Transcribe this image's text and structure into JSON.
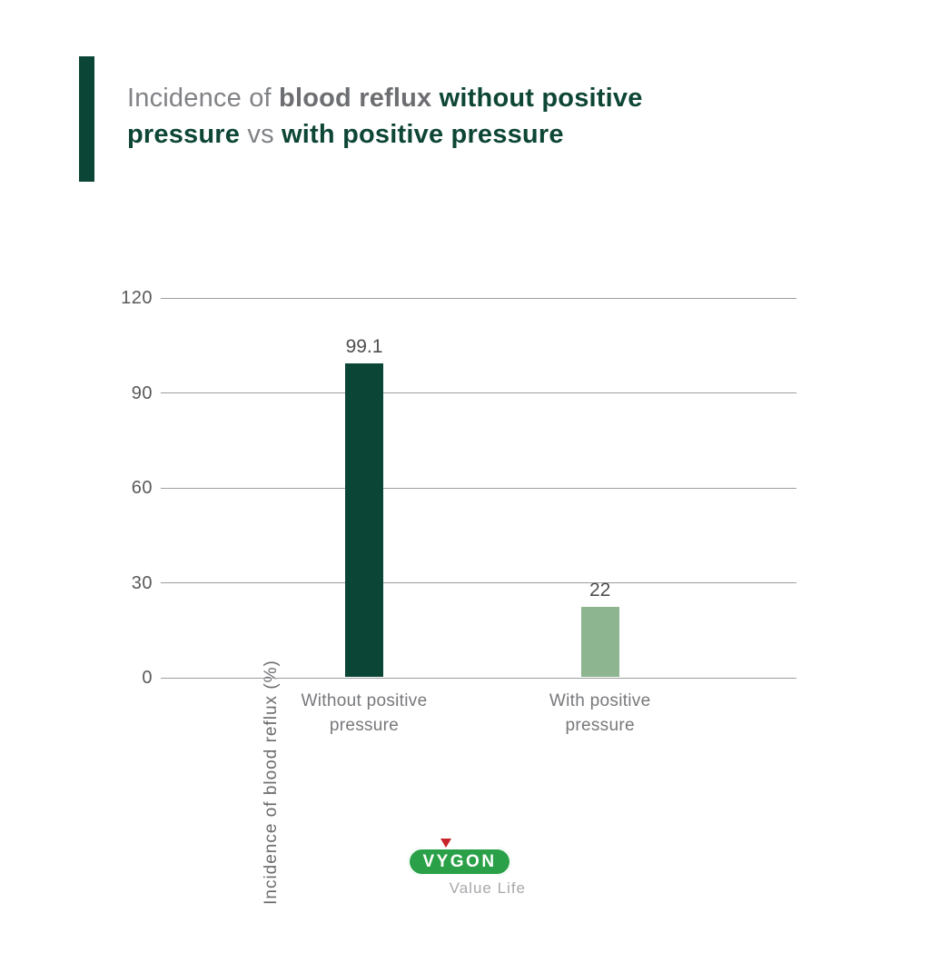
{
  "title": {
    "full": "Incidence of blood reflux without positive pressure vs with positive pressure",
    "seg1": "Incidence of ",
    "seg2": "blood reflux ",
    "seg3": "without positive",
    "seg4": "pressure",
    "seg5": " vs ",
    "seg6": "with positive pressure"
  },
  "chart_data": {
    "type": "bar",
    "title": "Incidence of blood reflux without positive pressure vs with positive pressure",
    "categories": [
      "Without positive pressure",
      "With positive pressure"
    ],
    "values": [
      99.1,
      22
    ],
    "value_labels": [
      "99.1",
      "22"
    ],
    "bar_colors": [
      "#0b4536",
      "#8db58f"
    ],
    "ylabel": "Incidence of blood reflux (%)",
    "xlabel": "",
    "ylim": [
      0,
      120
    ],
    "yticks": [
      0,
      30,
      60,
      90,
      120
    ],
    "grid": true,
    "legend_position": "none"
  },
  "footer": {
    "logo_text": "VYGON",
    "tagline": "Value Life"
  },
  "colors": {
    "dark_green": "#0b4536",
    "light_green": "#8db58f",
    "logo_green": "#2aa148",
    "logo_red": "#c9242b",
    "title_gray": "#808285",
    "axis_gray": "#58595b",
    "gridline_gray": "#9b9da1"
  }
}
